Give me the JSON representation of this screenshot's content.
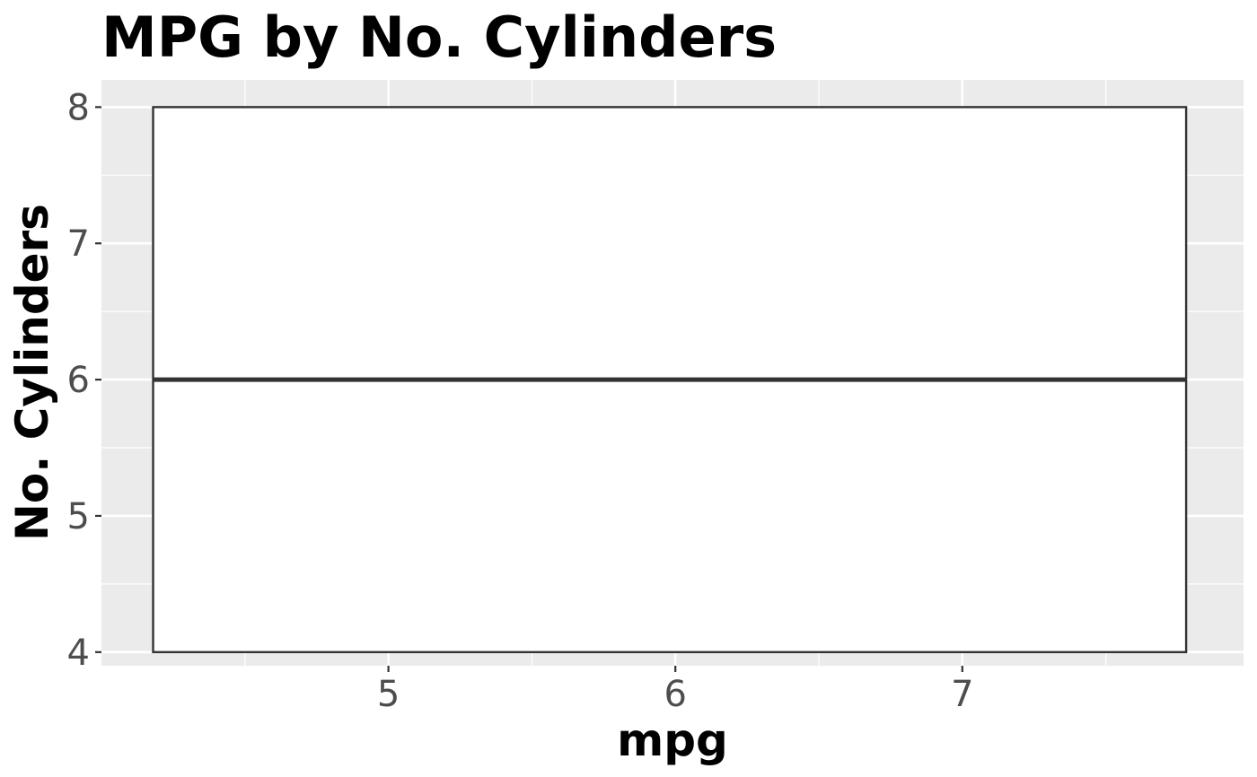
{
  "chart_data": {
    "type": "boxplot",
    "title": "MPG by No. Cylinders",
    "xlabel": "mpg",
    "ylabel": "No. Cylinders",
    "xlim": [
      4.0,
      7.98
    ],
    "ylim": [
      3.9,
      8.2
    ],
    "x_ticks": [
      5,
      6,
      7
    ],
    "y_ticks": [
      4,
      5,
      6,
      7,
      8
    ],
    "grid": true,
    "boxes": [
      {
        "x_start": 4.18,
        "x_end": 7.78,
        "lower_whisker": 4,
        "q1": 4,
        "median": 6,
        "q3": 8,
        "upper_whisker": 8
      }
    ],
    "colors": {
      "panel_background": "#ebebeb",
      "grid_major": "#ffffff",
      "box_fill": "#ffffff",
      "box_stroke": "#333333"
    }
  }
}
